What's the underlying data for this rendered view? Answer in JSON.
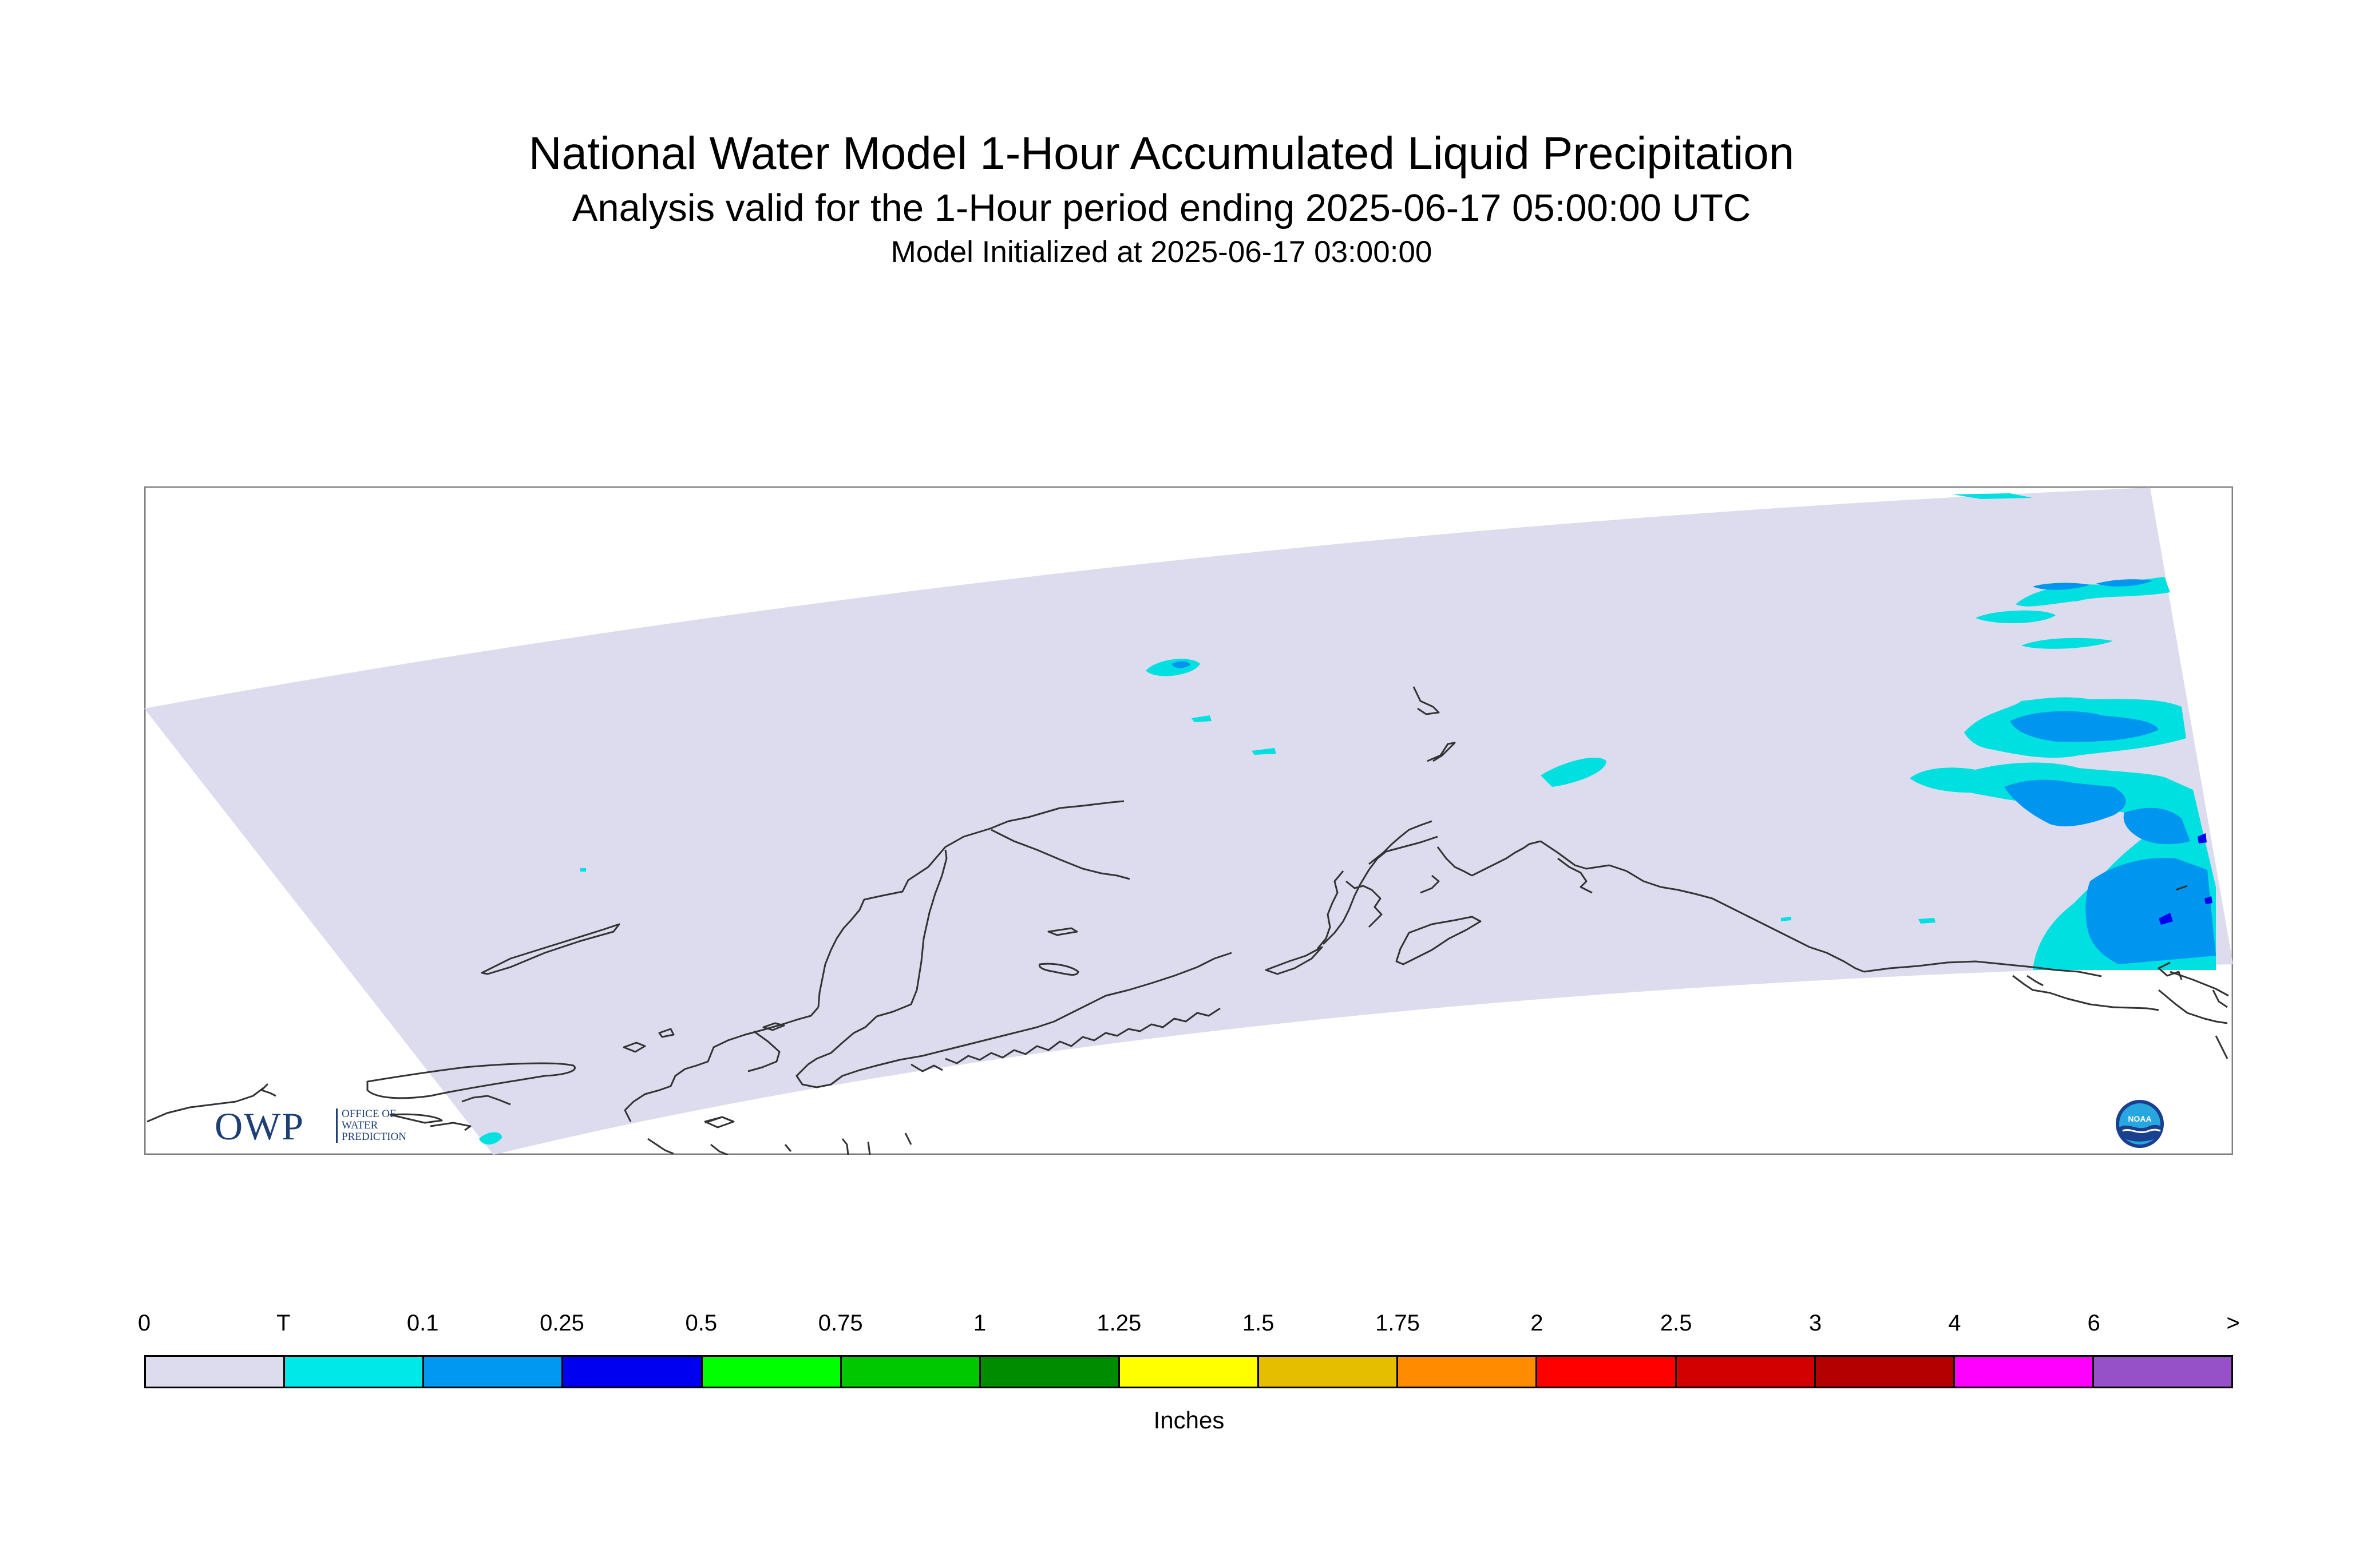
{
  "title": "National Water Model 1-Hour Accumulated Liquid Precipitation",
  "subtitle": "Analysis valid for the 1-Hour period ending 2025-06-17 05:00:00 UTC",
  "init_line": "Model Initialized at 2025-06-17 03:00:00",
  "map": {
    "region": "Alaska",
    "domain_fill_color": "#dcdcee",
    "coastline_color": "#333333",
    "precip_areas": [
      {
        "category": "T",
        "color": "#00e0e0"
      },
      {
        "category": "0.1",
        "color": "#0096f0"
      },
      {
        "category": "0.25",
        "color": "#0000f0"
      }
    ]
  },
  "logos": {
    "owp": {
      "letters": "OWP",
      "line1": "OFFICE OF",
      "line2": "WATER",
      "line3": "PREDICTION",
      "icon": "owp-logo"
    },
    "noaa": {
      "text": "NOAA",
      "icon": "noaa-logo"
    }
  },
  "legend": {
    "units": "Inches",
    "ticks": [
      "0",
      "T",
      "0.1",
      "0.25",
      "0.5",
      "0.75",
      "1",
      "1.25",
      "1.5",
      "1.75",
      "2",
      "2.5",
      "3",
      "4",
      "6",
      ">"
    ],
    "colors": [
      "#dcdcee",
      "#00e8e8",
      "#0098f0",
      "#0000f0",
      "#00ff00",
      "#00c800",
      "#008c00",
      "#ffff00",
      "#e6be00",
      "#ff8c00",
      "#ff0000",
      "#d20000",
      "#b40000",
      "#ff00ff",
      "#9650c8"
    ]
  }
}
